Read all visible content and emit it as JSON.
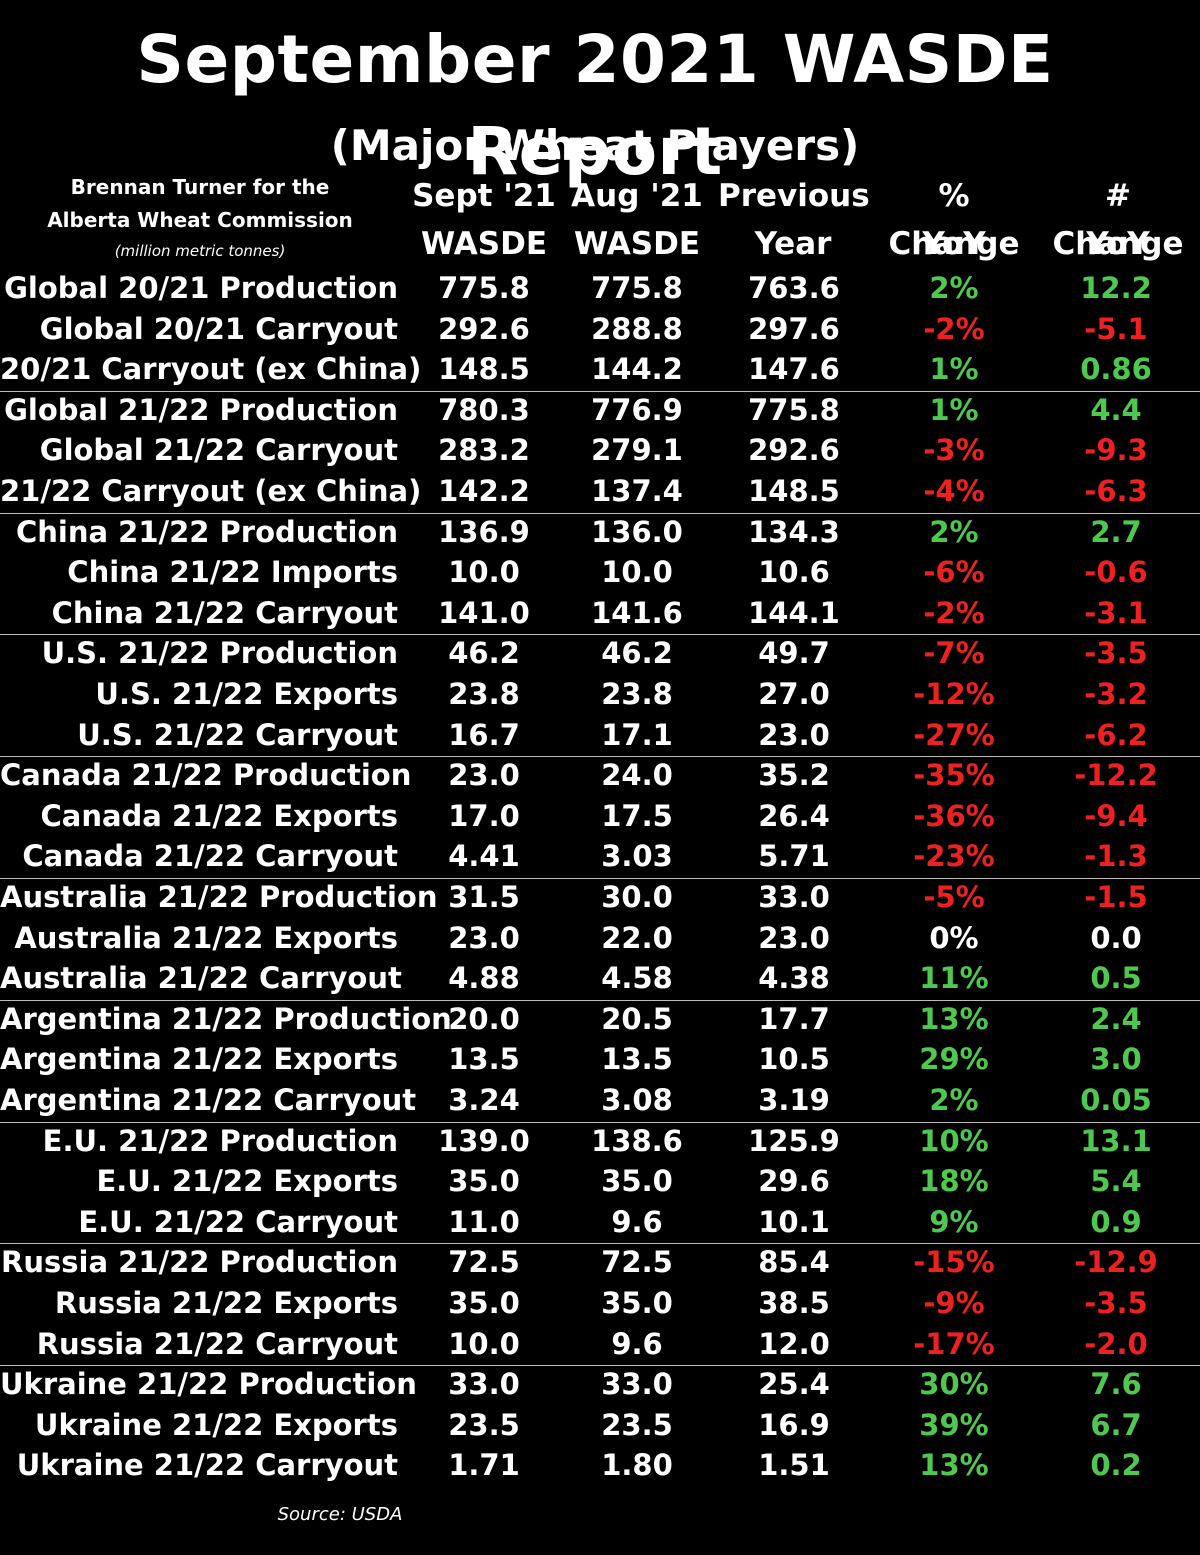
{
  "title": "September 2021 WASDE Report",
  "subtitle": "(Major Wheat Players)",
  "byline": {
    "line1": "Brennan Turner for the",
    "line2": "Alberta Wheat Commission",
    "unit": "(million metric tonnes)"
  },
  "headers": [
    {
      "top": "Sept '21",
      "bottom": "WASDE"
    },
    {
      "top": "Aug '21",
      "bottom": "WASDE"
    },
    {
      "top": "Previous",
      "bottom": "Year"
    },
    {
      "top": "% Change",
      "bottom": "YoY"
    },
    {
      "top": "# Change",
      "bottom": "YoY"
    }
  ],
  "rows": [
    {
      "label": "Global 20/21 Production",
      "sept": "775.8",
      "aug": "775.8",
      "prev": "763.6",
      "pct": "2%",
      "num": "12.2",
      "trend": "pos"
    },
    {
      "label": "Global 20/21 Carryout",
      "sept": "292.6",
      "aug": "288.8",
      "prev": "297.6",
      "pct": "-2%",
      "num": "-5.1",
      "trend": "neg"
    },
    {
      "label": "20/21 Carryout (ex China)",
      "sept": "148.5",
      "aug": "144.2",
      "prev": "147.6",
      "pct": "1%",
      "num": "0.86",
      "trend": "pos"
    },
    {
      "label": "Global 21/22 Production",
      "sept": "780.3",
      "aug": "776.9",
      "prev": "775.8",
      "pct": "1%",
      "num": "4.4",
      "trend": "pos"
    },
    {
      "label": "Global 21/22 Carryout",
      "sept": "283.2",
      "aug": "279.1",
      "prev": "292.6",
      "pct": "-3%",
      "num": "-9.3",
      "trend": "neg"
    },
    {
      "label": "21/22 Carryout (ex China)",
      "sept": "142.2",
      "aug": "137.4",
      "prev": "148.5",
      "pct": "-4%",
      "num": "-6.3",
      "trend": "neg"
    },
    {
      "label": "China 21/22 Production",
      "sept": "136.9",
      "aug": "136.0",
      "prev": "134.3",
      "pct": "2%",
      "num": "2.7",
      "trend": "pos"
    },
    {
      "label": "China 21/22 Imports",
      "sept": "10.0",
      "aug": "10.0",
      "prev": "10.6",
      "pct": "-6%",
      "num": "-0.6",
      "trend": "neg"
    },
    {
      "label": "China 21/22 Carryout",
      "sept": "141.0",
      "aug": "141.6",
      "prev": "144.1",
      "pct": "-2%",
      "num": "-3.1",
      "trend": "neg"
    },
    {
      "label": "U.S. 21/22 Production",
      "sept": "46.2",
      "aug": "46.2",
      "prev": "49.7",
      "pct": "-7%",
      "num": "-3.5",
      "trend": "neg"
    },
    {
      "label": "U.S. 21/22 Exports",
      "sept": "23.8",
      "aug": "23.8",
      "prev": "27.0",
      "pct": "-12%",
      "num": "-3.2",
      "trend": "neg"
    },
    {
      "label": "U.S. 21/22 Carryout",
      "sept": "16.7",
      "aug": "17.1",
      "prev": "23.0",
      "pct": "-27%",
      "num": "-6.2",
      "trend": "neg"
    },
    {
      "label": "Canada 21/22 Production",
      "sept": "23.0",
      "aug": "24.0",
      "prev": "35.2",
      "pct": "-35%",
      "num": "-12.2",
      "trend": "neg"
    },
    {
      "label": "Canada 21/22 Exports",
      "sept": "17.0",
      "aug": "17.5",
      "prev": "26.4",
      "pct": "-36%",
      "num": "-9.4",
      "trend": "neg"
    },
    {
      "label": "Canada 21/22 Carryout",
      "sept": "4.41",
      "aug": "3.03",
      "prev": "5.71",
      "pct": "-23%",
      "num": "-1.3",
      "trend": "neg"
    },
    {
      "label": "Australia 21/22 Production",
      "sept": "31.5",
      "aug": "30.0",
      "prev": "33.0",
      "pct": "-5%",
      "num": "-1.5",
      "trend": "neg"
    },
    {
      "label": "Australia 21/22 Exports",
      "sept": "23.0",
      "aug": "22.0",
      "prev": "23.0",
      "pct": "0%",
      "num": "0.0",
      "trend": "neu"
    },
    {
      "label": "Australia 21/22 Carryout",
      "sept": "4.88",
      "aug": "4.58",
      "prev": "4.38",
      "pct": "11%",
      "num": "0.5",
      "trend": "pos"
    },
    {
      "label": "Argentina 21/22 Production",
      "sept": "20.0",
      "aug": "20.5",
      "prev": "17.7",
      "pct": "13%",
      "num": "2.4",
      "trend": "pos"
    },
    {
      "label": "Argentina 21/22 Exports",
      "sept": "13.5",
      "aug": "13.5",
      "prev": "10.5",
      "pct": "29%",
      "num": "3.0",
      "trend": "pos"
    },
    {
      "label": "Argentina 21/22 Carryout",
      "sept": "3.24",
      "aug": "3.08",
      "prev": "3.19",
      "pct": "2%",
      "num": "0.05",
      "trend": "pos"
    },
    {
      "label": "E.U. 21/22 Production",
      "sept": "139.0",
      "aug": "138.6",
      "prev": "125.9",
      "pct": "10%",
      "num": "13.1",
      "trend": "pos"
    },
    {
      "label": "E.U. 21/22 Exports",
      "sept": "35.0",
      "aug": "35.0",
      "prev": "29.6",
      "pct": "18%",
      "num": "5.4",
      "trend": "pos"
    },
    {
      "label": "E.U. 21/22 Carryout",
      "sept": "11.0",
      "aug": "9.6",
      "prev": "10.1",
      "pct": "9%",
      "num": "0.9",
      "trend": "pos"
    },
    {
      "label": "Russia 21/22 Production",
      "sept": "72.5",
      "aug": "72.5",
      "prev": "85.4",
      "pct": "-15%",
      "num": "-12.9",
      "trend": "neg"
    },
    {
      "label": "Russia 21/22 Exports",
      "sept": "35.0",
      "aug": "35.0",
      "prev": "38.5",
      "pct": "-9%",
      "num": "-3.5",
      "trend": "neg"
    },
    {
      "label": "Russia 21/22 Carryout",
      "sept": "10.0",
      "aug": "9.6",
      "prev": "12.0",
      "pct": "-17%",
      "num": "-2.0",
      "trend": "neg"
    },
    {
      "label": "Ukraine 21/22 Production",
      "sept": "33.0",
      "aug": "33.0",
      "prev": "25.4",
      "pct": "30%",
      "num": "7.6",
      "trend": "pos"
    },
    {
      "label": "Ukraine 21/22 Exports",
      "sept": "23.5",
      "aug": "23.5",
      "prev": "16.9",
      "pct": "39%",
      "num": "6.7",
      "trend": "pos"
    },
    {
      "label": "Ukraine 21/22 Carryout",
      "sept": "1.71",
      "aug": "1.80",
      "prev": "1.51",
      "pct": "13%",
      "num": "0.2",
      "trend": "pos"
    }
  ],
  "source": "Source: USDA",
  "colors": {
    "positive": "#4fc84f",
    "negative": "#ee2020",
    "neutral": "#ffffff",
    "background": "#000000"
  }
}
